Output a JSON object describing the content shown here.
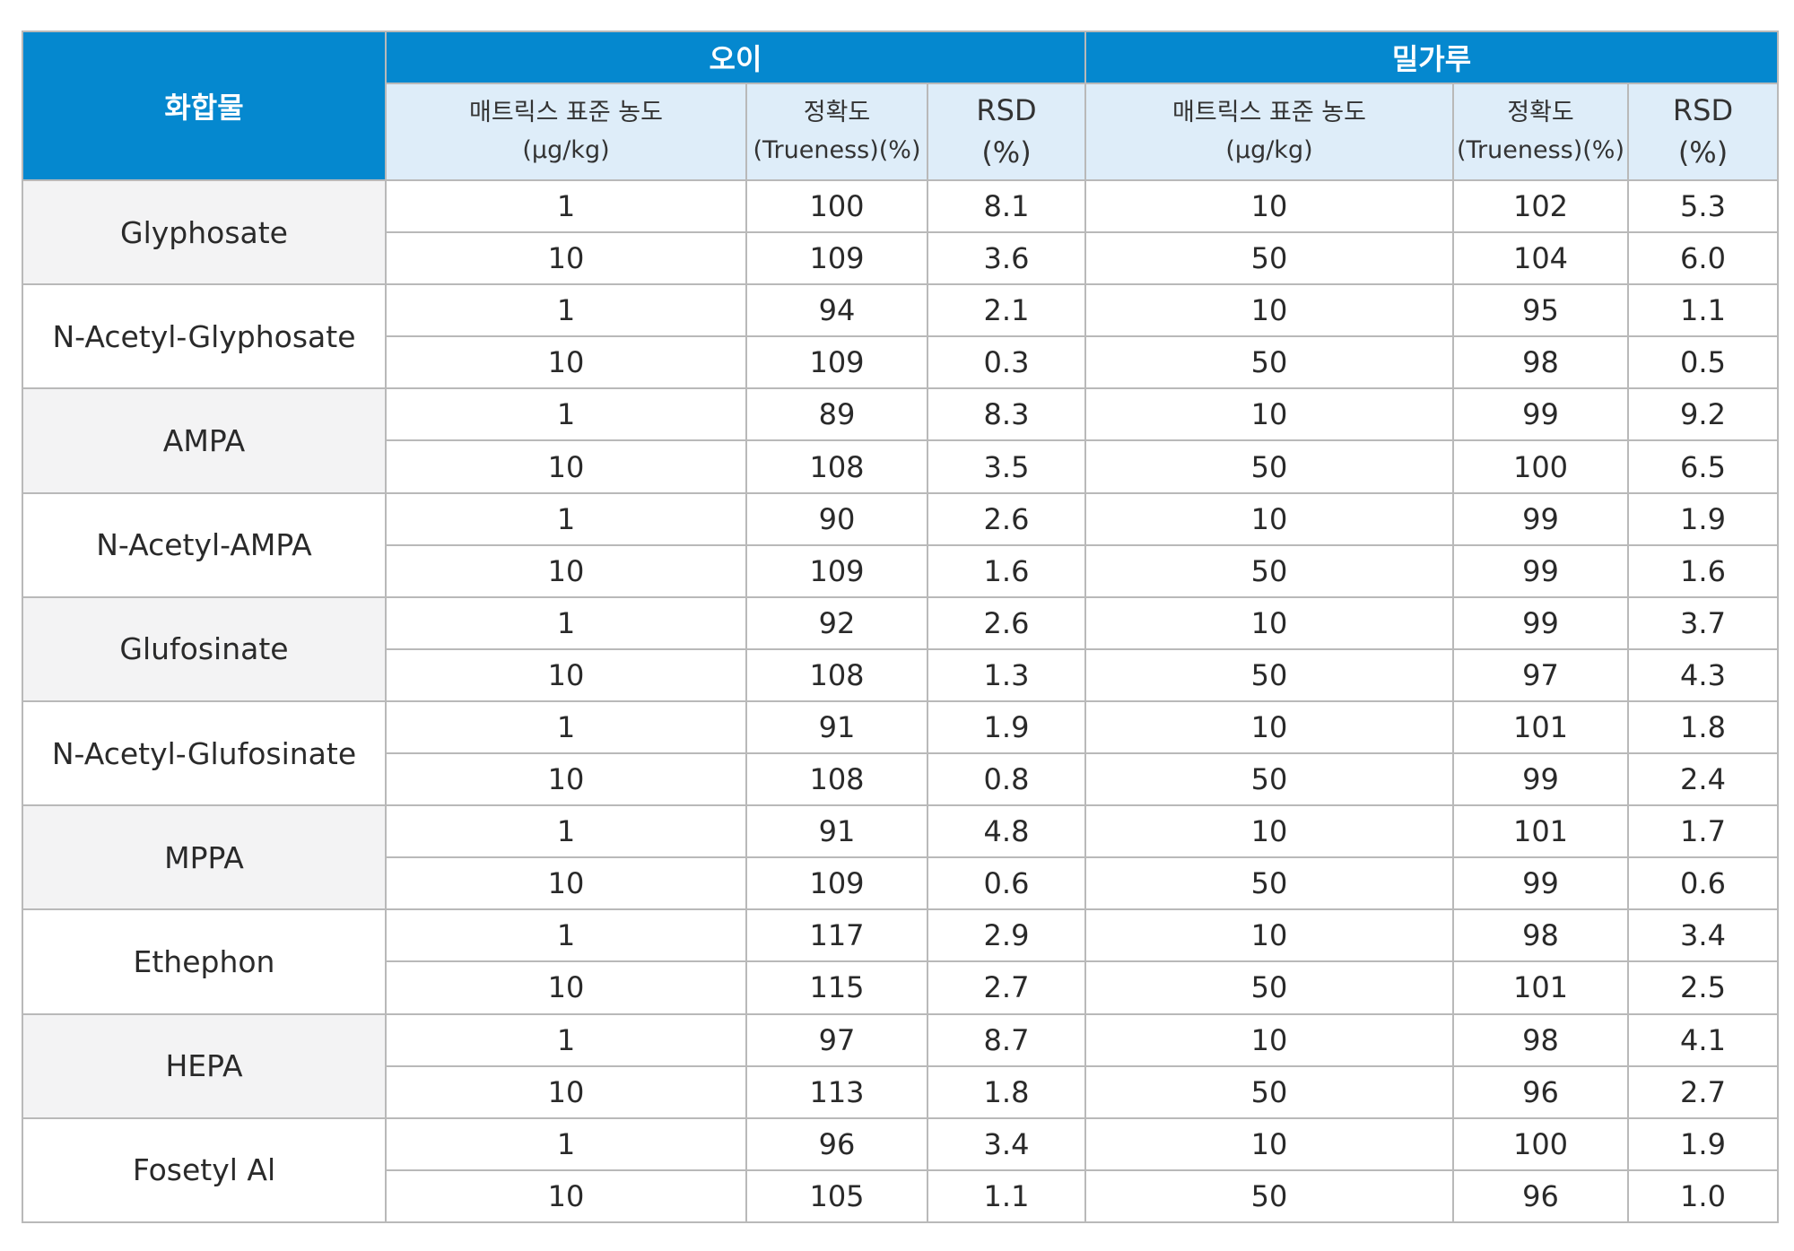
{
  "header": {
    "compound": "화합물",
    "matrices": [
      "오이",
      "밀가루"
    ],
    "sub_columns": [
      {
        "line1": "매트릭스 표준 농도",
        "line2": "(μg/kg)"
      },
      {
        "line1": "정확도",
        "line2": "(Trueness)(%)"
      },
      {
        "line1": "RSD",
        "line2": "(%)"
      },
      {
        "line1": "매트릭스 표준 농도",
        "line2": "(μg/kg)"
      },
      {
        "line1": "정확도",
        "line2": "(Trueness)(%)"
      },
      {
        "line1": "RSD",
        "line2": "(%)"
      }
    ]
  },
  "rows": [
    {
      "name": "Glyphosate",
      "levels": [
        [
          "1",
          "100",
          "8.1",
          "10",
          "102",
          "5.3"
        ],
        [
          "10",
          "109",
          "3.6",
          "50",
          "104",
          "6.0"
        ]
      ]
    },
    {
      "name": "N-Acetyl-Glyphosate",
      "levels": [
        [
          "1",
          "94",
          "2.1",
          "10",
          "95",
          "1.1"
        ],
        [
          "10",
          "109",
          "0.3",
          "50",
          "98",
          "0.5"
        ]
      ]
    },
    {
      "name": "AMPA",
      "levels": [
        [
          "1",
          "89",
          "8.3",
          "10",
          "99",
          "9.2"
        ],
        [
          "10",
          "108",
          "3.5",
          "50",
          "100",
          "6.5"
        ]
      ]
    },
    {
      "name": "N-Acetyl-AMPA",
      "levels": [
        [
          "1",
          "90",
          "2.6",
          "10",
          "99",
          "1.9"
        ],
        [
          "10",
          "109",
          "1.6",
          "50",
          "99",
          "1.6"
        ]
      ]
    },
    {
      "name": "Glufosinate",
      "levels": [
        [
          "1",
          "92",
          "2.6",
          "10",
          "99",
          "3.7"
        ],
        [
          "10",
          "108",
          "1.3",
          "50",
          "97",
          "4.3"
        ]
      ]
    },
    {
      "name": "N-Acetyl-Glufosinate",
      "levels": [
        [
          "1",
          "91",
          "1.9",
          "10",
          "101",
          "1.8"
        ],
        [
          "10",
          "108",
          "0.8",
          "50",
          "99",
          "2.4"
        ]
      ]
    },
    {
      "name": "MPPA",
      "levels": [
        [
          "1",
          "91",
          "4.8",
          "10",
          "101",
          "1.7"
        ],
        [
          "10",
          "109",
          "0.6",
          "50",
          "99",
          "0.6"
        ]
      ]
    },
    {
      "name": "Ethephon",
      "levels": [
        [
          "1",
          "117",
          "2.9",
          "10",
          "98",
          "3.4"
        ],
        [
          "10",
          "115",
          "2.7",
          "50",
          "101",
          "2.5"
        ]
      ]
    },
    {
      "name": "HEPA",
      "levels": [
        [
          "1",
          "97",
          "8.7",
          "10",
          "98",
          "4.1"
        ],
        [
          "10",
          "113",
          "1.8",
          "50",
          "96",
          "2.7"
        ]
      ]
    },
    {
      "name": "Fosetyl Al",
      "levels": [
        [
          "1",
          "96",
          "3.4",
          "10",
          "100",
          "1.9"
        ],
        [
          "10",
          "105",
          "1.1",
          "50",
          "96",
          "1.0"
        ]
      ]
    }
  ]
}
